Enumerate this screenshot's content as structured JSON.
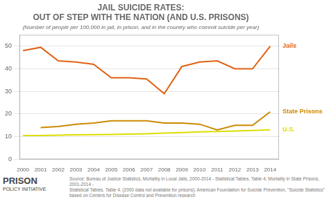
{
  "chart_data": {
    "type": "line",
    "title": [
      "JAIL SUICIDE RATES:",
      "OUT OF STEP WITH THE NATION (AND U.S. PRISONS)"
    ],
    "subtitle": "(Number of people per 100,000 in jail, in prison, and in the country who commit suicide per year)",
    "x": [
      2000,
      2001,
      2002,
      2003,
      2004,
      2005,
      2006,
      2007,
      2008,
      2009,
      2010,
      2011,
      2012,
      2013,
      2014
    ],
    "xlim": [
      1999.8,
      2014.5
    ],
    "xticks": [
      2000,
      2001,
      2002,
      2003,
      2004,
      2005,
      2006,
      2007,
      2008,
      2009,
      2010,
      2011,
      2012,
      2013,
      2014
    ],
    "ylim": [
      0,
      55
    ],
    "yticks": [
      0,
      10,
      20,
      30,
      40,
      50
    ],
    "grid": "y",
    "series": [
      {
        "name": "Jails",
        "color": "#e06010",
        "values": [
          48,
          49.5,
          43.5,
          43,
          42,
          36,
          36,
          35.5,
          29,
          41,
          43,
          43.5,
          40,
          40,
          50
        ]
      },
      {
        "name": "State Prisons",
        "color": "#cc8800",
        "values": [
          null,
          14,
          14.5,
          15.5,
          16,
          17,
          17,
          17,
          16,
          16,
          15.5,
          13,
          15,
          15,
          21
        ]
      },
      {
        "name": "U.S.",
        "color": "#dddd00",
        "values": [
          10.5,
          10.5,
          10.7,
          10.8,
          10.9,
          11,
          11.1,
          11.3,
          11.6,
          11.8,
          12.1,
          12.3,
          12.5,
          12.7,
          13
        ]
      }
    ],
    "annotations": [
      "PRISON",
      "POLICY INITIATIVE",
      "Source: Bureau of Justice Statistics, Mortality in Local Jails, 2000-2014 - Statistical Tables, Table 4; Mortality in State Prisons, 2001-2014 -\nStatistical Tables, Table 4. (2000 data not available for prisons); American Foundation for Suicide Prevention, \"Suicide Statistics\"\nbased on Centers for Disease Control and Prevention research"
    ]
  }
}
